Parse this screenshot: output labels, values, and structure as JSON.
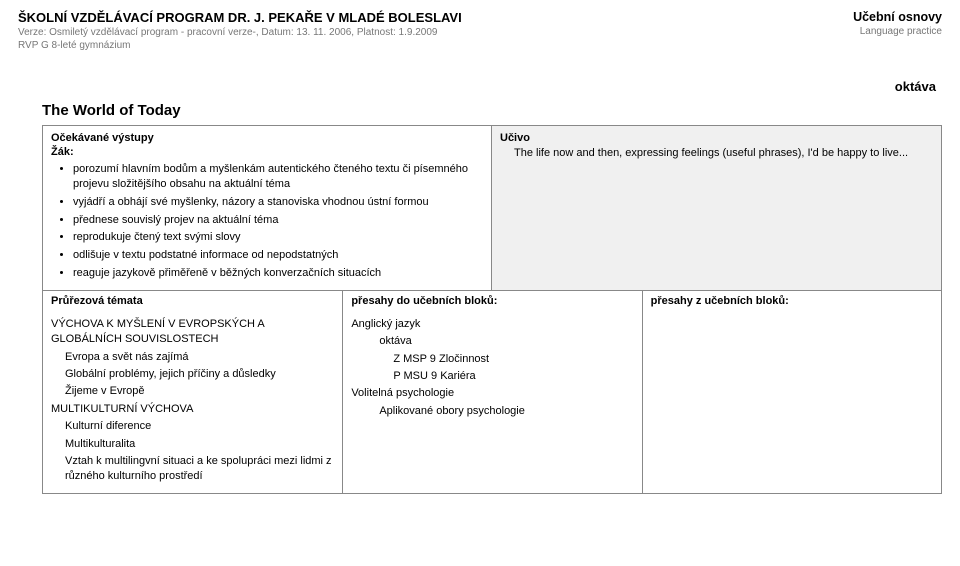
{
  "header": {
    "title": "ŠKOLNÍ VZDĚLÁVACÍ PROGRAM DR. J. PEKAŘE V MLADÉ BOLESLAVI",
    "subtitle": "Verze: Osmiletý vzdělávací program - pracovní verze-, Datum: 13. 11. 2006, Platnost: 1.9.2009",
    "rvp": "RVP G 8-leté gymnázium",
    "osnovy_title": "Učební osnovy",
    "osnovy_sub": "Language practice"
  },
  "grade": "oktáva",
  "unit_title": "The World of Today",
  "outcomes": {
    "heading": "Očekávané výstupy",
    "sub": "Žák:",
    "items": [
      "porozumí hlavním bodům a myšlenkám autentického čteného textu či písemného projevu složitějšího obsahu na aktuální téma",
      "vyjádří a obhájí své myšlenky, názory a stanoviska vhodnou ústní formou",
      "přednese souvislý projev na aktuální téma",
      "reprodukuje čtený text svými slovy",
      "odlišuje v textu podstatné informace od nepodstatných",
      "reaguje jazykově přiměřeně v běžných konverzačních situacích"
    ]
  },
  "ucivo": {
    "heading": "Učivo",
    "text": "The life now and then, expressing feelings (useful phrases), I'd be happy to live..."
  },
  "themes_headers": {
    "c1": "Průřezová témata",
    "c2": "přesahy do učebních bloků:",
    "c3": "přesahy z učebních bloků:"
  },
  "themes_c1": {
    "l1": "VÝCHOVA K MYŠLENÍ V EVROPSKÝCH A GLOBÁLNÍCH SOUVISLOSTECH",
    "l2": "Evropa a svět nás zajímá",
    "l3": "Globální problémy, jejich příčiny a důsledky",
    "l4": "Žijeme v Evropě",
    "l5": "MULTIKULTURNÍ VÝCHOVA",
    "l6": "Kulturní diference",
    "l7": "Multikulturalita",
    "l8": "Vztah k multilingvní situaci a ke spolupráci mezi lidmi z různého kulturního prostředí"
  },
  "themes_c2": {
    "l1": "Anglický jazyk",
    "l2": "oktáva",
    "l3": "Z  MSP 9 Zločinnost",
    "l4": "P  MSU 9 Kariéra",
    "l5": "Volitelná psychologie",
    "l6": "Aplikované obory psychologie"
  }
}
